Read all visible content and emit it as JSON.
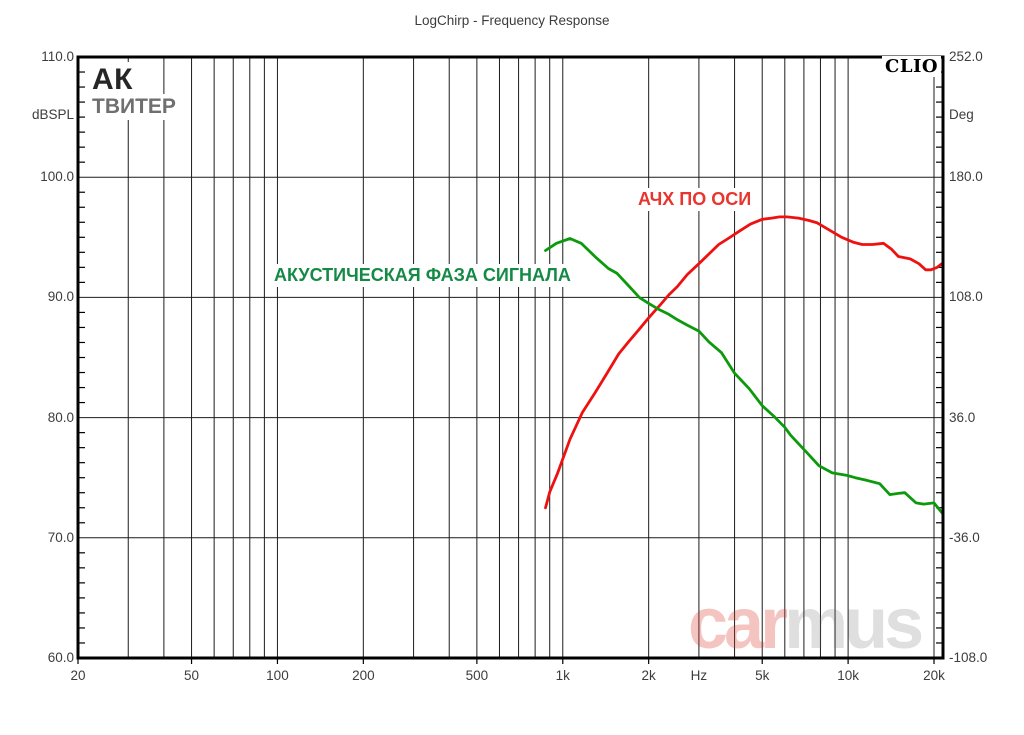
{
  "title": "LogChirp - Frequency Response",
  "logo": "CLIO",
  "watermark": {
    "part1": "car",
    "part2": "mus"
  },
  "annotations": {
    "device": "АК",
    "device_sub": "ТВИТЕР",
    "spl_label": "АЧХ ПО ОСИ",
    "phase_label": "АКУСТИЧЕСКАЯ ФАЗА СИГНАЛА"
  },
  "chart_data": {
    "type": "line",
    "title": "LogChirp - Frequency Response",
    "x_axis": {
      "scale": "log",
      "unit_label": "Hz",
      "min": 20,
      "max": 20000,
      "ticks": [
        {
          "value": 20,
          "label": "20"
        },
        {
          "value": 50,
          "label": "50"
        },
        {
          "value": 100,
          "label": "100"
        },
        {
          "value": 200,
          "label": "200"
        },
        {
          "value": 500,
          "label": "500"
        },
        {
          "value": 1000,
          "label": "1k"
        },
        {
          "value": 2000,
          "label": "2k"
        },
        {
          "value": 3000,
          "label": "Hz",
          "unit": true
        },
        {
          "value": 5000,
          "label": "5k"
        },
        {
          "value": 10000,
          "label": "10k"
        },
        {
          "value": 20000,
          "label": "20k"
        }
      ]
    },
    "y_left": {
      "label": "dBSPL",
      "min": 60,
      "max": 110,
      "ticks": [
        {
          "value": 110,
          "label": "110.0"
        },
        {
          "value": 100,
          "label": "100.0"
        },
        {
          "value": 90,
          "label": "90.0"
        },
        {
          "value": 80,
          "label": "80.0"
        },
        {
          "value": 70,
          "label": "70.0"
        },
        {
          "value": 60,
          "label": "60.0"
        }
      ]
    },
    "y_right": {
      "label": "Deg",
      "min": -108,
      "max": 252,
      "ticks": [
        {
          "value": 252,
          "label": "252.0"
        },
        {
          "value": 180,
          "label": "180.0"
        },
        {
          "value": 108,
          "label": "108.0"
        },
        {
          "value": 36,
          "label": "36.0"
        },
        {
          "value": -36,
          "label": "-36.0"
        },
        {
          "value": -108,
          "label": "-108.0"
        }
      ]
    },
    "grid": true,
    "series": [
      {
        "name": "АЧХ ПО ОСИ",
        "axis": "left",
        "unit": "dBSPL",
        "color": "#ee1111",
        "points": [
          [
            870,
            72.5
          ],
          [
            900,
            73.8
          ],
          [
            960,
            75.4
          ],
          [
            1060,
            78.2
          ],
          [
            1170,
            80.4
          ],
          [
            1300,
            82.1
          ],
          [
            1430,
            83.7
          ],
          [
            1570,
            85.3
          ],
          [
            1700,
            86.3
          ],
          [
            1860,
            87.4
          ],
          [
            2000,
            88.3
          ],
          [
            2200,
            89.4
          ],
          [
            2350,
            90.2
          ],
          [
            2520,
            90.9
          ],
          [
            2730,
            91.9
          ],
          [
            3000,
            92.8
          ],
          [
            3250,
            93.6
          ],
          [
            3520,
            94.4
          ],
          [
            3800,
            94.9
          ],
          [
            4150,
            95.5
          ],
          [
            4550,
            96.1
          ],
          [
            5000,
            96.5
          ],
          [
            5400,
            96.6
          ],
          [
            5750,
            96.7
          ],
          [
            6100,
            96.7
          ],
          [
            6700,
            96.6
          ],
          [
            7300,
            96.4
          ],
          [
            7800,
            96.2
          ],
          [
            8600,
            95.6
          ],
          [
            9500,
            95.0
          ],
          [
            10400,
            94.6
          ],
          [
            11200,
            94.4
          ],
          [
            12200,
            94.4
          ],
          [
            13300,
            94.5
          ],
          [
            14200,
            94.0
          ],
          [
            15000,
            93.4
          ],
          [
            16500,
            93.2
          ],
          [
            17700,
            92.8
          ],
          [
            18700,
            92.3
          ],
          [
            19500,
            92.3
          ],
          [
            20500,
            92.5
          ],
          [
            21300,
            92.8
          ]
        ]
      },
      {
        "name": "АКУСТИЧЕСКАЯ ФАЗА СИГНАЛА",
        "axis": "right",
        "unit": "Deg",
        "color": "#0c9a0c",
        "points": [
          [
            870,
            136.1
          ],
          [
            950,
            140.4
          ],
          [
            1060,
            143.3
          ],
          [
            1160,
            140.4
          ],
          [
            1310,
            131.8
          ],
          [
            1445,
            125.3
          ],
          [
            1550,
            122.4
          ],
          [
            1710,
            114.5
          ],
          [
            1855,
            108.0
          ],
          [
            2000,
            104.4
          ],
          [
            2170,
            100.8
          ],
          [
            2350,
            97.9
          ],
          [
            2500,
            95.0
          ],
          [
            2730,
            91.4
          ],
          [
            3000,
            87.8
          ],
          [
            3250,
            81.4
          ],
          [
            3600,
            74.9
          ],
          [
            4000,
            62.6
          ],
          [
            4500,
            53.3
          ],
          [
            5000,
            43.2
          ],
          [
            5500,
            36.7
          ],
          [
            6000,
            30.2
          ],
          [
            6300,
            25.2
          ],
          [
            7100,
            15.8
          ],
          [
            7900,
            7.2
          ],
          [
            8800,
            2.9
          ],
          [
            9900,
            1.4
          ],
          [
            10600,
            0.0
          ],
          [
            11500,
            -1.4
          ],
          [
            12900,
            -3.6
          ],
          [
            14000,
            -10.1
          ],
          [
            15000,
            -9.4
          ],
          [
            15800,
            -9.0
          ],
          [
            17300,
            -15.1
          ],
          [
            18400,
            -15.8
          ],
          [
            20000,
            -15.1
          ],
          [
            21300,
            -20.9
          ]
        ]
      }
    ]
  }
}
